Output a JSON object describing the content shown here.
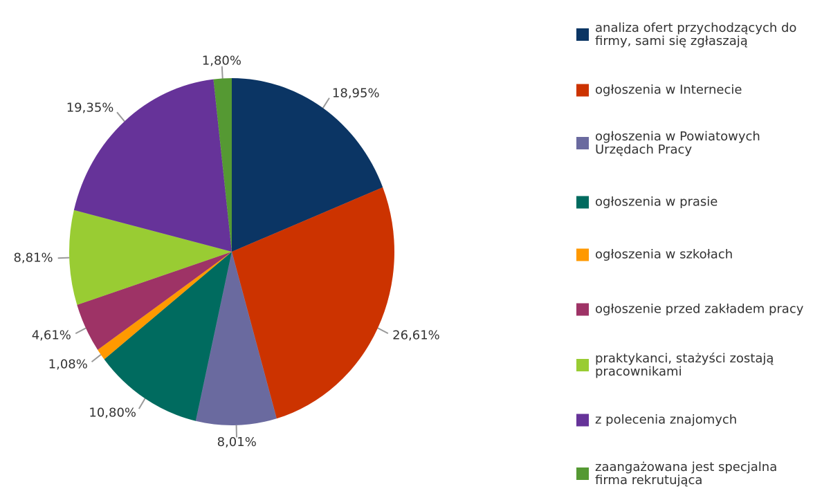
{
  "chart_data": {
    "type": "pie",
    "categories": [
      "analiza ofert przychodzących do firmy, sami się zgłaszają",
      "ogłoszenia w Internecie",
      "ogłoszenia w Powiatowych Urzędach Pracy",
      "ogłoszenia w prasie",
      "ogłoszenia w szkołach",
      "ogłoszenie przed zakładem pracy",
      "praktykanci, stażyści zostają pracownikami",
      "z polecenia znajomych",
      "zaangażowana jest specjalna firma rekrutująca"
    ],
    "values": [
      18.95,
      26.61,
      8.01,
      10.8,
      1.08,
      4.61,
      8.81,
      19.35,
      1.8
    ],
    "value_labels": [
      "18,95%",
      "26,61%",
      "8,01%",
      "10,80%",
      "1,08%",
      "4,61%",
      "8,81%",
      "19,35%",
      "1,80%"
    ],
    "colors": [
      "#0b3564",
      "#cc3300",
      "#6a6a9f",
      "#006b5f",
      "#ff9900",
      "#9e3366",
      "#99cc33",
      "#663399",
      "#559933"
    ],
    "legend": "right"
  }
}
